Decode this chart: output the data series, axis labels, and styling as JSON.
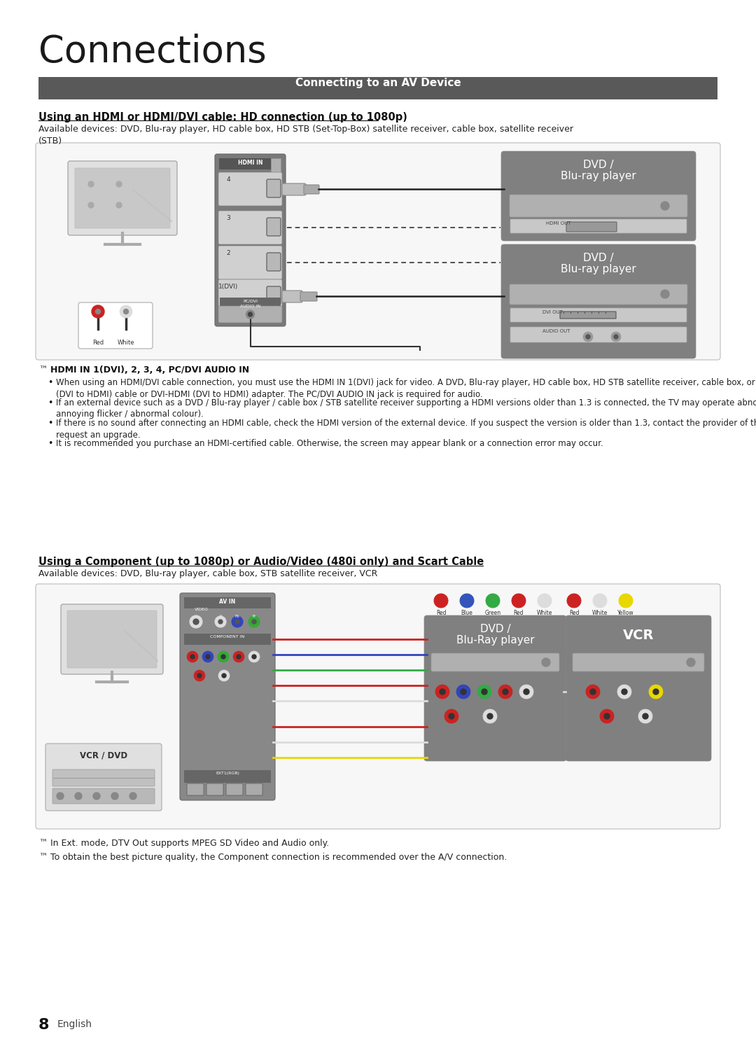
{
  "title": "Connections",
  "section_header": "Connecting to an AV Device",
  "section_header_bg": "#595959",
  "section_header_color": "#ffffff",
  "subsection1_title": "Using an HDMI or HDMI/DVI cable: HD connection (up to 1080p)",
  "subsection1_devices": "Available devices: DVD, Blu-ray player, HD cable box, HD STB (Set-Top-Box) satellite receiver, cable box, satellite receiver\n(STB)",
  "hdmi_note_header": "HDMI IN 1(DVI), 2, 3, 4, PC/DVI AUDIO IN",
  "hdmi_bullets": [
    "When using an HDMI/DVI cable connection, you must use the HDMI IN 1(DVI) jack for video. A DVD, Blu-ray player, HD cable box, HD STB satellite receiver, cable box, or STB satellite receiver may require a DVI-HDMI\n(DVI to HDMI) cable or DVI-HDMI (DVI to HDMI) adapter. The PC/DVI AUDIO IN jack is required for audio.",
    "If an external device such as a DVD / Blu-ray player / cable box / STB satellite receiver supporting a HDMI versions older than 1.3 is connected, the TV may operate abnormally (e.g. no screen display / no sound /\nannoying flicker / abnormal colour).",
    "If there is no sound after connecting an HDMI cable, check the HDMI version of the external device. If you suspect the version is older than 1.3, contact the provider of the device to confirm the HDMI version and\nrequest an upgrade.",
    "It is recommended you purchase an HDMI-certified cable. Otherwise, the screen may appear blank or a connection error may occur."
  ],
  "subsection2_title": "Using a Component (up to 1080p) or Audio/Video (480i only) and Scart Cable",
  "subsection2_devices": "Available devices: DVD, Blu-ray player, cable box, STB satellite receiver, VCR",
  "component_notes": [
    "In Ext. mode, DTV Out supports MPEG SD Video and Audio only.",
    "To obtain the best picture quality, the Component connection is recommended over the A/V connection."
  ],
  "page_number": "8",
  "page_lang": "English",
  "bg_color": "#ffffff",
  "dark_panel": "#888888",
  "dvd_panel": "#808080",
  "light_gray": "#d8d8d8",
  "mid_gray": "#aaaaaa"
}
